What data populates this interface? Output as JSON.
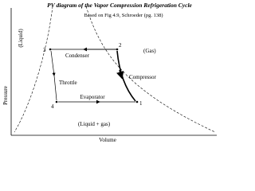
{
  "title": "PV diagram of the Vapor Compression Refrigeration Cycle",
  "subtitle": "Based on Fig 4.9, Schroeder (pg. 138)",
  "axes": {
    "y_label": "Pressure",
    "x_label": "Volume"
  },
  "regions": {
    "liquid": "(Liquid)",
    "gas": "(Gas)",
    "mixed": "(Liquid + gas)"
  },
  "processes": {
    "condenser": "Condenser",
    "compressor": "Compressor",
    "throttle": "Throttle",
    "evaporator": "Evaporator"
  },
  "points": [
    "1",
    "2",
    "3",
    "4"
  ]
}
